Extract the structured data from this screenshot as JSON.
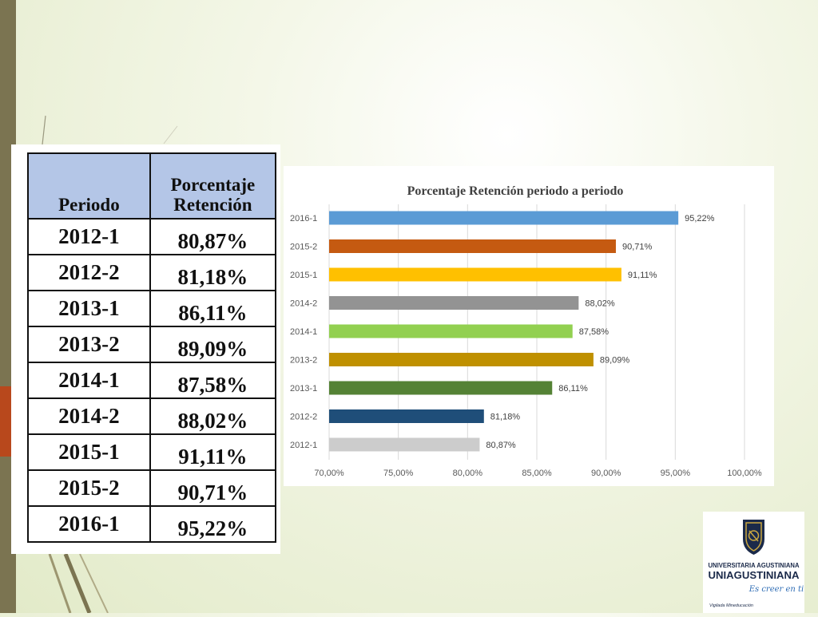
{
  "table": {
    "header_period": "Periodo",
    "header_percent_line1": "Porcentaje",
    "header_percent_line2": "Retención",
    "rows": [
      {
        "period": "2012-1",
        "value": "80,87%"
      },
      {
        "period": "2012-2",
        "value": "81,18%"
      },
      {
        "period": "2013-1",
        "value": "86,11%"
      },
      {
        "period": "2013-2",
        "value": "89,09%"
      },
      {
        "period": "2014-1",
        "value": "87,58%"
      },
      {
        "period": "2014-2",
        "value": "88,02%"
      },
      {
        "period": "2015-1",
        "value": "91,11%"
      },
      {
        "period": "2015-2",
        "value": "90,71%"
      },
      {
        "period": "2016-1",
        "value": "95,22%"
      }
    ]
  },
  "chart_data": {
    "type": "bar",
    "orientation": "horizontal",
    "title": "Porcentaje Retención periodo a periodo",
    "categories": [
      "2016-1",
      "2015-2",
      "2015-1",
      "2014-2",
      "2014-1",
      "2013-2",
      "2013-1",
      "2012-2",
      "2012-1"
    ],
    "values": [
      95.22,
      90.71,
      91.11,
      88.02,
      87.58,
      89.09,
      86.11,
      81.18,
      80.87
    ],
    "value_labels": [
      "95,22%",
      "90,71%",
      "91,11%",
      "88,02%",
      "87,58%",
      "89,09%",
      "86,11%",
      "81,18%",
      "80,87%"
    ],
    "colors": [
      "#5b9bd5",
      "#c55a11",
      "#ffc000",
      "#939393",
      "#92d050",
      "#bf9000",
      "#548235",
      "#1f4e79",
      "#cccccc"
    ],
    "xlim": [
      70,
      100
    ],
    "xticks": [
      70,
      75,
      80,
      85,
      90,
      95,
      100
    ],
    "xtick_labels": [
      "70,00%",
      "75,00%",
      "80,00%",
      "85,00%",
      "90,00%",
      "95,00%",
      "100,00%"
    ],
    "grid": "vertical"
  },
  "logo": {
    "line1": "UNIVERSITARIA AGUSTINIANA",
    "line2": "UNIAGUSTINIANA",
    "tagline": "Es creer en ti",
    "footer": "Vigilada Mineducación"
  }
}
